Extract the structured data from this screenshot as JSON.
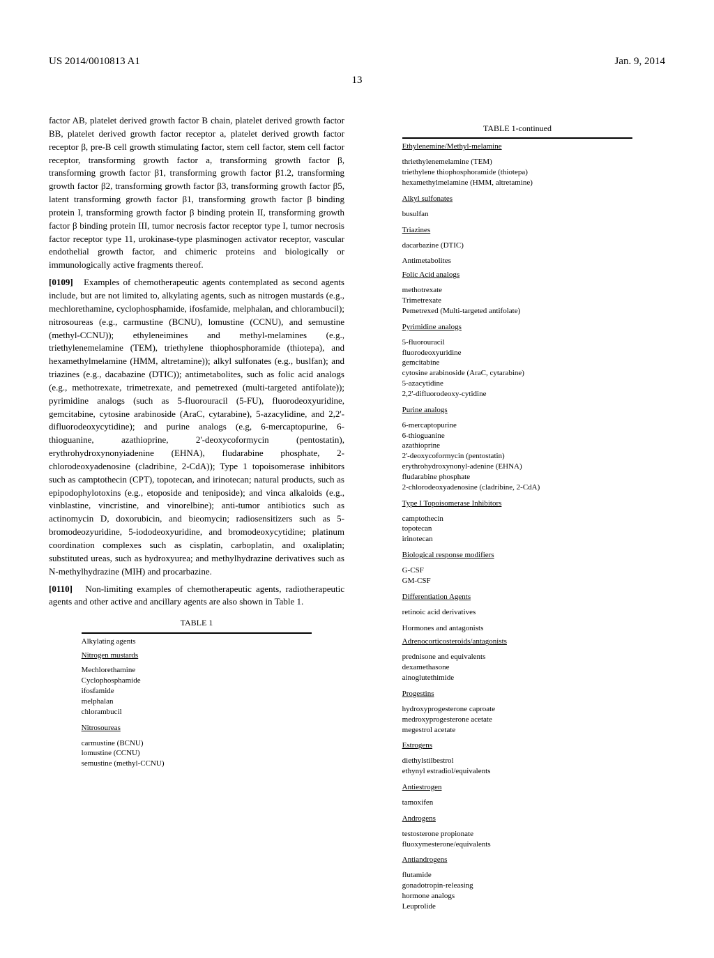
{
  "header": {
    "left": "US 2014/0010813 A1",
    "right": "Jan. 9, 2014"
  },
  "page_number": "13",
  "left_column": {
    "p0108_cont": "factor AB, platelet derived growth factor B chain, platelet derived growth factor BB, platelet derived growth factor receptor a, platelet derived growth factor receptor β, pre-B cell growth stimulating factor, stem cell factor, stem cell factor receptor, transforming growth factor a, transforming growth factor β, transforming growth factor β1, transforming growth factor β1.2, transforming growth factor β2, transforming growth factor β3, transforming growth factor β5, latent transforming growth factor β1, transforming growth factor β binding protein I, transforming growth factor β binding protein II, transforming growth factor β binding protein III, tumor necrosis factor receptor type I, tumor necrosis factor receptor type 11, urokinase-type plasminogen activator receptor, vascular endothelial growth factor, and chimeric proteins and biologically or immunologically active fragments thereof.",
    "p0109_num": "[0109]",
    "p0109": "Examples of chemotherapeutic agents contemplated as second agents include, but are not limited to, alkylating agents, such as nitrogen mustards (e.g., mechlorethamine, cyclophosphamide, ifosfamide, melphalan, and chlorambucil); nitrosoureas (e.g., carmustine (BCNU), lomustine (CCNU), and semustine (methyl-CCNU)); ethyleneimines and methyl-melamines (e.g., triethylenemelamine (TEM), triethylene thiophosphoramide (thiotepa), and hexamethylmelamine (HMM, altretamine)); alkyl sulfonates (e.g., buslfan); and triazines (e.g., dacabazine (DTIC)); antimetabolites, such as folic acid analogs (e.g., methotrexate, trimetrexate, and pemetrexed (multi-targeted antifolate)); pyrimidine analogs (such as 5-fluorouracil (5-FU), fluorodeoxyuridine, gemcitabine, cytosine arabinoside (AraC, cytarabine), 5-azacylidine, and 2,2'-difluorodeoxycytidine); and purine analogs (e.g, 6-mercaptopurine, 6-thioguanine, azathioprine, 2'-deoxycoformycin (pentostatin), erythrohydroxynonyiadenine (EHNA), fludarabine phosphate, 2-chlorodeoxyadenosine (cladribine, 2-CdA)); Type 1 topoisomerase inhibitors such as camptothecin (CPT), topotecan, and irinotecan; natural products, such as epipodophylotoxins (e.g., etoposide and teniposide); and vinca alkaloids (e.g., vinblastine, vincristine, and vinorelbine); anti-tumor antibiotics such as actinomycin D, doxorubicin, and bieomycin; radiosensitizers such as 5-bromodeozyuridine, 5-iododeoxyuridine, and bromodeoxycytidine; platinum coordination complexes such as cisplatin, carboplatin, and oxaliplatin; substituted ureas, such as hydroxyurea; and methylhydrazine derivatives such as N-methylhydrazine (MIH) and procarbazine.",
    "p0110_num": "[0110]",
    "p0110": "Non-limiting examples of chemotherapeutic agents, radiotherapeutic agents and other active and ancillary agents are also shown in Table 1.",
    "table1_caption": "TABLE 1",
    "table1": {
      "sec1_l1": "Alkylating agents",
      "sec1_l2": "Nitrogen mustards",
      "sec1_items": [
        "Mechlorethamine",
        "Cyclophosphamide",
        "ifosfamide",
        "melphalan",
        "chlorambucil"
      ],
      "sec2_l1": "Nitrosoureas",
      "sec2_items": [
        "carmustine (BCNU)",
        "lomustine (CCNU)",
        "semustine (methyl-CCNU)"
      ]
    }
  },
  "right_column": {
    "table1c_caption": "TABLE 1-continued",
    "t": {
      "s1_l1": "Ethylenemine/Methyl-melamine",
      "s1_items": [
        "thriethylenemelamine (TEM)",
        "triethylene thiophosphoramide (thiotepa)",
        "hexamethylmelamine (HMM, altretamine)"
      ],
      "s2_l1": "Alkyl sulfonates",
      "s2_items": [
        "busulfan"
      ],
      "s3_l1": "Triazines",
      "s3_items": [
        "dacarbazine (DTIC)"
      ],
      "s4_l1": "Antimetabolites",
      "s4_l2": "Folic Acid analogs",
      "s4_items": [
        "methotrexate",
        "Trimetrexate",
        "Pemetrexed (Multi-targeted antifolate)"
      ],
      "s5_l1": "Pyrimidine analogs",
      "s5_items": [
        "5-fluorouracil",
        "fluorodeoxyuridine",
        "gemcitabine",
        "cytosine arabinoside (AraC, cytarabine)",
        "5-azacytidine",
        "2,2'-difluorodeoxy-cytidine"
      ],
      "s6_l1": "Purine analogs",
      "s6_items": [
        "6-mercaptopurine",
        "6-thioguanine",
        "azathioprine",
        "2'-deoxycoformycin (pentostatin)",
        "erythrohydroxynonyl-adenine (EHNA)",
        "fludarabine phosphate",
        "2-chlorodeoxyadenosine (cladribine, 2-CdA)"
      ],
      "s7_l1": "Type I Topoisomerase Inhibitors",
      "s7_items": [
        "camptothecin",
        "topotecan",
        "irinotecan"
      ],
      "s8_l1": "Biological response modifiers",
      "s8_items": [
        "G-CSF",
        "GM-CSF"
      ],
      "s9_l1": "Differentiation Agents",
      "s9_items": [
        "retinoic acid derivatives"
      ],
      "s10_l1": "Hormones and antagonists",
      "s10_l2": "Adrenocorticosteroids/antagonists",
      "s10_items": [
        "prednisone and equivalents",
        "dexamethasone",
        "ainoglutethimide"
      ],
      "s11_l1": "Progestins",
      "s11_items": [
        "hydroxyprogesterone caproate",
        "medroxyprogesterone acetate",
        "megestrol acetate"
      ],
      "s12_l1": "Estrogens",
      "s12_items": [
        "diethylstilbestrol",
        "ethynyl estradiol/equivalents"
      ],
      "s13_l1": "Antiestrogen",
      "s13_items": [
        "tamoxifen"
      ],
      "s14_l1": "Androgens",
      "s14_items": [
        "testosterone propionate",
        "fluoxymesterone/equivalents"
      ],
      "s15_l1": "Antiandrogens",
      "s15_items": [
        "flutamide",
        "gonadotropin-releasing",
        "hormone analogs",
        "Leuprolide"
      ]
    }
  }
}
